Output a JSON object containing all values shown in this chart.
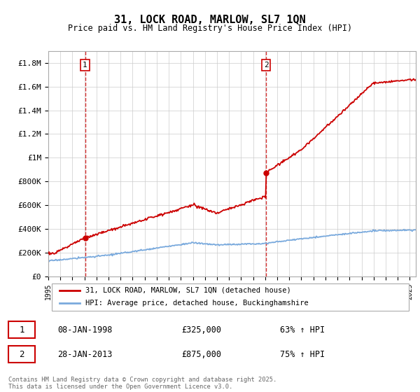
{
  "title": "31, LOCK ROAD, MARLOW, SL7 1QN",
  "subtitle": "Price paid vs. HM Land Registry's House Price Index (HPI)",
  "legend_line1": "31, LOCK ROAD, MARLOW, SL7 1QN (detached house)",
  "legend_line2": "HPI: Average price, detached house, Buckinghamshire",
  "annotation1_date": "08-JAN-1998",
  "annotation1_price": "£325,000",
  "annotation1_hpi": "63% ↑ HPI",
  "annotation2_date": "28-JAN-2013",
  "annotation2_price": "£875,000",
  "annotation2_hpi": "75% ↑ HPI",
  "footer": "Contains HM Land Registry data © Crown copyright and database right 2025.\nThis data is licensed under the Open Government Licence v3.0.",
  "red_color": "#cc0000",
  "blue_color": "#7aaadd",
  "ylim": [
    0,
    1900000
  ],
  "yticks": [
    0,
    200000,
    400000,
    600000,
    800000,
    1000000,
    1200000,
    1400000,
    1600000,
    1800000
  ],
  "ytick_labels": [
    "£0",
    "£200K",
    "£400K",
    "£600K",
    "£800K",
    "£1M",
    "£1.2M",
    "£1.4M",
    "£1.6M",
    "£1.8M"
  ],
  "sale1_x": 1998.05,
  "sale1_y": 325000,
  "sale2_x": 2013.07,
  "sale2_y": 875000,
  "xmin": 1995,
  "xmax": 2025.5,
  "xticks": [
    1995,
    1996,
    1997,
    1998,
    1999,
    2000,
    2001,
    2002,
    2003,
    2004,
    2005,
    2006,
    2007,
    2008,
    2009,
    2010,
    2011,
    2012,
    2013,
    2014,
    2015,
    2016,
    2017,
    2018,
    2019,
    2020,
    2021,
    2022,
    2023,
    2024,
    2025
  ]
}
